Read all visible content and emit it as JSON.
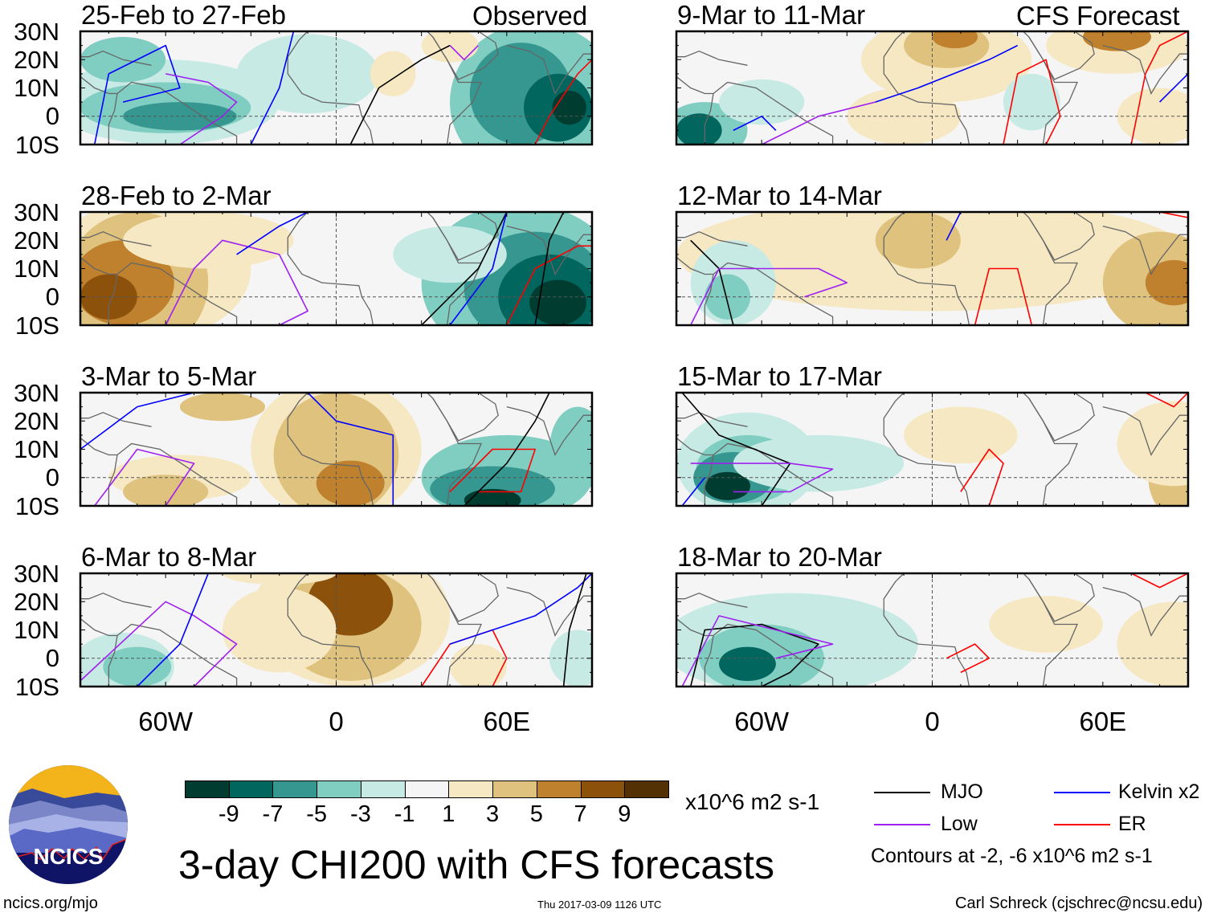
{
  "columns": {
    "left_header": "Observed",
    "right_header": "CFS Forecast"
  },
  "panels": [
    {
      "title": "25-Feb to 27-Feb",
      "column": "observed"
    },
    {
      "title": "28-Feb to 2-Mar",
      "column": "observed"
    },
    {
      "title": "3-Mar to 5-Mar",
      "column": "observed"
    },
    {
      "title": "6-Mar to 8-Mar",
      "column": "observed"
    },
    {
      "title": "9-Mar to 11-Mar",
      "column": "forecast"
    },
    {
      "title": "12-Mar to 14-Mar",
      "column": "forecast"
    },
    {
      "title": "15-Mar to 17-Mar",
      "column": "forecast"
    },
    {
      "title": "18-Mar to 20-Mar",
      "column": "forecast"
    }
  ],
  "lat_labels": [
    "30N",
    "20N",
    "10N",
    "0",
    "10S"
  ],
  "lon_labels": [
    "60W",
    "0",
    "60E"
  ],
  "colorbar": {
    "colors": [
      "#003c30",
      "#01665e",
      "#35978f",
      "#80cdc1",
      "#c7eae5",
      "#f5f5f5",
      "#f6e8c3",
      "#dfc27d",
      "#bf812d",
      "#8c510a",
      "#543005"
    ],
    "labels": [
      "-9",
      "-7",
      "-5",
      "-3",
      "-1",
      "1",
      "3",
      "5",
      "7",
      "9"
    ],
    "units": "x10^6 m2 s-1"
  },
  "legend": {
    "items": [
      {
        "label": "MJO",
        "color": "#000000"
      },
      {
        "label": "Kelvin x2",
        "color": "#0000ff"
      },
      {
        "label": "Low",
        "color": "#a020f0"
      },
      {
        "label": "ER",
        "color": "#ff0000"
      }
    ],
    "note": "Contours at -2, -6 x10^6 m2 s-1"
  },
  "main_title": "3-day CHI200 with CFS forecasts",
  "logo": {
    "text": "NCICS"
  },
  "footer": {
    "url": "ncics.org/mjo",
    "timestamp": "Thu 2017-03-09 1126 UTC",
    "credit": "Carl Schreck (cjschrec@ncsu.edu)"
  }
}
